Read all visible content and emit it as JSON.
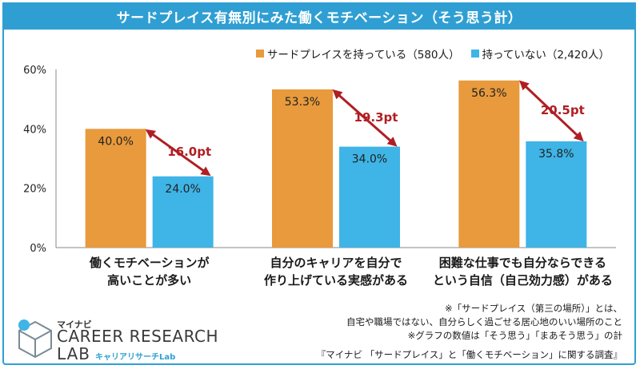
{
  "title": "サードプレイス有無別にみた働くモチベーション（そう思う計）",
  "chart_data": {
    "type": "bar",
    "categories": [
      [
        "働くモチベーションが",
        "高いことが多い"
      ],
      [
        "自分のキャリアを自分で",
        "作り上げている実感がある"
      ],
      [
        "困難な仕事でも自分ならできる",
        "という自信（自己効力感）がある"
      ]
    ],
    "series": [
      {
        "name": "サードプレイスを持っている（580人）",
        "color": "#e89a3c",
        "values": [
          40.0,
          53.3,
          56.3
        ],
        "labels": [
          "40.0%",
          "53.3%",
          "56.3%"
        ]
      },
      {
        "name": "持っていない（2,420人）",
        "color": "#3fb4e6",
        "values": [
          24.0,
          34.0,
          35.8
        ],
        "labels": [
          "24.0%",
          "34.0%",
          "35.8%"
        ]
      }
    ],
    "differences": [
      "16.0pt",
      "19.3pt",
      "20.5pt"
    ],
    "yticks": [
      "0%",
      "20%",
      "40%",
      "60%"
    ],
    "ylim": [
      0,
      60
    ],
    "grid": false
  },
  "notes": [
    "※「サードプレイス（第三の場所）」とは、",
    "自宅や職場ではない、自分らしく過ごせる居心地のいい場所のこと",
    "※グラフの数値は「そう思う」「まあそう思う」の計"
  ],
  "source": "『マイナビ 「サードプレイス」と「働くモチベーション」に関する調査』",
  "logo": {
    "top": "マイナビ",
    "line1": "CAREER RESEARCH",
    "line2": "LAB",
    "sub": "キャリアリサーチLab"
  },
  "colors": {
    "accent": "#2f9fd3",
    "arrow": "#b01e23"
  }
}
